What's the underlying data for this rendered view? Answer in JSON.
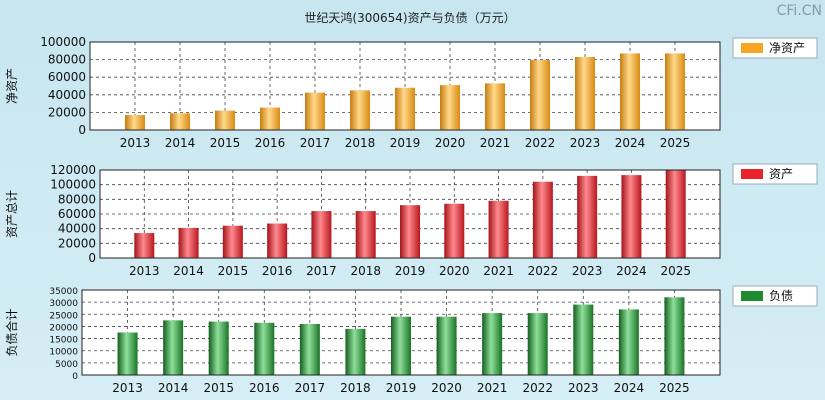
{
  "title": "世纪天鸿(300654)资产与负债（万元）",
  "watermark": "CFi.CN",
  "chart_data": [
    {
      "type": "bar",
      "ylabel": "净资产",
      "legend": "净资产",
      "color": "#f5a623",
      "categories": [
        "2013",
        "2014",
        "2015",
        "2016",
        "2017",
        "2018",
        "2019",
        "2020",
        "2021",
        "2022",
        "2023",
        "2024",
        "2025"
      ],
      "values": [
        17000,
        19000,
        22000,
        25500,
        42500,
        45000,
        48000,
        51000,
        53000,
        79500,
        83000,
        87000,
        87000
      ],
      "ylim": [
        0,
        100000
      ],
      "yticks": [
        0,
        20000,
        40000,
        60000,
        80000,
        100000
      ],
      "grid": true,
      "legend_position": "right"
    },
    {
      "type": "bar",
      "ylabel": "资产总计",
      "legend": "资产",
      "color": "#e8232a",
      "categories": [
        "2013",
        "2014",
        "2015",
        "2016",
        "2017",
        "2018",
        "2019",
        "2020",
        "2021",
        "2022",
        "2023",
        "2024",
        "2025"
      ],
      "values": [
        34000,
        41000,
        44000,
        47000,
        64000,
        64000,
        72000,
        74000,
        78000,
        104000,
        112000,
        113000,
        119500
      ],
      "ylim": [
        0,
        120000
      ],
      "yticks": [
        0,
        20000,
        40000,
        60000,
        80000,
        100000,
        120000
      ],
      "grid": true,
      "legend_position": "right"
    },
    {
      "type": "bar",
      "ylabel": "负债合计",
      "legend": "负债",
      "color": "#1f8a2e",
      "categories": [
        "2013",
        "2014",
        "2015",
        "2016",
        "2017",
        "2018",
        "2019",
        "2020",
        "2021",
        "2022",
        "2023",
        "2024",
        "2025"
      ],
      "values": [
        17500,
        22500,
        22000,
        21500,
        21000,
        19000,
        24000,
        24000,
        25500,
        25500,
        29000,
        27000,
        32000
      ],
      "ylim": [
        0,
        35000
      ],
      "yticks": [
        0,
        5000,
        10000,
        15000,
        20000,
        25000,
        30000,
        35000
      ],
      "grid": true,
      "legend_position": "right"
    }
  ]
}
